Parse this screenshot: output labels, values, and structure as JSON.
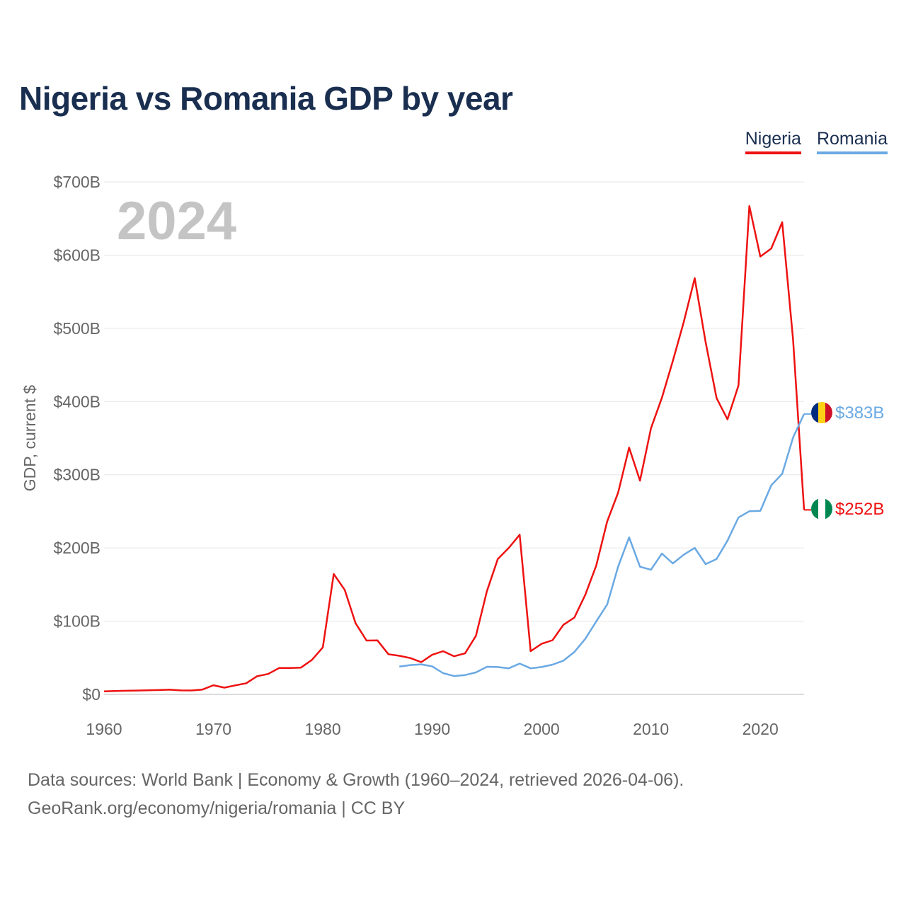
{
  "title": "Nigeria vs Romania GDP by year",
  "footer": {
    "sources": "Data sources: World Bank | Economy & Growth (1960–2024, retrieved 2026-04-06).",
    "attribution": "GeoRank.org/economy/nigeria/romania | CC BY"
  },
  "chart_data": {
    "type": "line",
    "title": "Nigeria vs Romania GDP by year",
    "xlabel": "",
    "ylabel": "GDP, current $",
    "xlim": [
      1960,
      2024
    ],
    "ylim": [
      0,
      700
    ],
    "grid": true,
    "legend_position": "top-right",
    "year_watermark": "2024",
    "x_ticks": [
      1960,
      1970,
      1980,
      1990,
      2000,
      2010,
      2020
    ],
    "x_tick_labels": [
      "1960",
      "1970",
      "1980",
      "1990",
      "2000",
      "2010",
      "2020"
    ],
    "y_ticks": [
      0,
      100,
      200,
      300,
      400,
      500,
      600,
      700
    ],
    "y_tick_labels": [
      "$0",
      "$100B",
      "$200B",
      "$300B",
      "$400B",
      "$500B",
      "$600B",
      "$700B"
    ],
    "series": [
      {
        "name": "Nigeria",
        "color": "#ee1111",
        "flag": "nigeria-flag",
        "end_label": "$252B",
        "points": [
          [
            1960,
            4.2
          ],
          [
            1961,
            4.5
          ],
          [
            1962,
            4.9
          ],
          [
            1963,
            5.2
          ],
          [
            1964,
            5.5
          ],
          [
            1965,
            5.9
          ],
          [
            1966,
            6.4
          ],
          [
            1967,
            5.4
          ],
          [
            1968,
            5.3
          ],
          [
            1969,
            6.6
          ],
          [
            1970,
            12.5
          ],
          [
            1971,
            9.2
          ],
          [
            1972,
            12.3
          ],
          [
            1973,
            15.2
          ],
          [
            1974,
            24.8
          ],
          [
            1975,
            27.8
          ],
          [
            1976,
            36.0
          ],
          [
            1977,
            36.0
          ],
          [
            1978,
            36.5
          ],
          [
            1979,
            47.0
          ],
          [
            1980,
            64.2
          ],
          [
            1981,
            164.5
          ],
          [
            1982,
            142.8
          ],
          [
            1983,
            97.1
          ],
          [
            1984,
            73.5
          ],
          [
            1985,
            73.7
          ],
          [
            1986,
            54.8
          ],
          [
            1987,
            52.7
          ],
          [
            1988,
            49.6
          ],
          [
            1989,
            44.0
          ],
          [
            1990,
            54.0
          ],
          [
            1991,
            59.0
          ],
          [
            1992,
            52.0
          ],
          [
            1993,
            56.0
          ],
          [
            1994,
            80.0
          ],
          [
            1995,
            141.0
          ],
          [
            1996,
            185.0
          ],
          [
            1997,
            200.0
          ],
          [
            1998,
            218.0
          ],
          [
            1999,
            59.0
          ],
          [
            2000,
            69.0
          ],
          [
            2001,
            74.0
          ],
          [
            2002,
            95.0
          ],
          [
            2003,
            104.9
          ],
          [
            2004,
            136.0
          ],
          [
            2005,
            176.1
          ],
          [
            2006,
            236.1
          ],
          [
            2007,
            275.6
          ],
          [
            2008,
            337.0
          ],
          [
            2009,
            291.9
          ],
          [
            2010,
            363.4
          ],
          [
            2011,
            404.99
          ],
          [
            2012,
            455.5
          ],
          [
            2013,
            508.7
          ],
          [
            2014,
            568.5
          ],
          [
            2015,
            481.1
          ],
          [
            2016,
            404.6
          ],
          [
            2017,
            375.7
          ],
          [
            2018,
            421.7
          ],
          [
            2019,
            667.0
          ],
          [
            2020,
            598.0
          ],
          [
            2021,
            609.0
          ],
          [
            2022,
            645.0
          ],
          [
            2023,
            484.0
          ],
          [
            2024,
            252.0
          ]
        ]
      },
      {
        "name": "Romania",
        "color": "#6aa9e3",
        "flag": "romania-flag",
        "end_label": "$383B",
        "points": [
          [
            1987,
            38.0
          ],
          [
            1988,
            40.0
          ],
          [
            1989,
            41.0
          ],
          [
            1990,
            38.3
          ],
          [
            1991,
            29.0
          ],
          [
            1992,
            25.0
          ],
          [
            1993,
            26.4
          ],
          [
            1994,
            30.0
          ],
          [
            1995,
            37.7
          ],
          [
            1996,
            37.3
          ],
          [
            1997,
            35.6
          ],
          [
            1998,
            42.1
          ],
          [
            1999,
            35.6
          ],
          [
            2000,
            37.3
          ],
          [
            2001,
            40.6
          ],
          [
            2002,
            46.0
          ],
          [
            2003,
            57.9
          ],
          [
            2004,
            75.8
          ],
          [
            2005,
            99.7
          ],
          [
            2006,
            122.7
          ],
          [
            2007,
            174.5
          ],
          [
            2008,
            214.4
          ],
          [
            2009,
            174.3
          ],
          [
            2010,
            170.3
          ],
          [
            2011,
            192.3
          ],
          [
            2012,
            178.9
          ],
          [
            2013,
            190.8
          ],
          [
            2014,
            200.0
          ],
          [
            2015,
            177.9
          ],
          [
            2016,
            185.0
          ],
          [
            2017,
            210.0
          ],
          [
            2018,
            241.6
          ],
          [
            2019,
            250.1
          ],
          [
            2020,
            250.7
          ],
          [
            2021,
            285.5
          ],
          [
            2022,
            301.3
          ],
          [
            2023,
            351.0
          ],
          [
            2024,
            383.0
          ]
        ]
      }
    ]
  }
}
